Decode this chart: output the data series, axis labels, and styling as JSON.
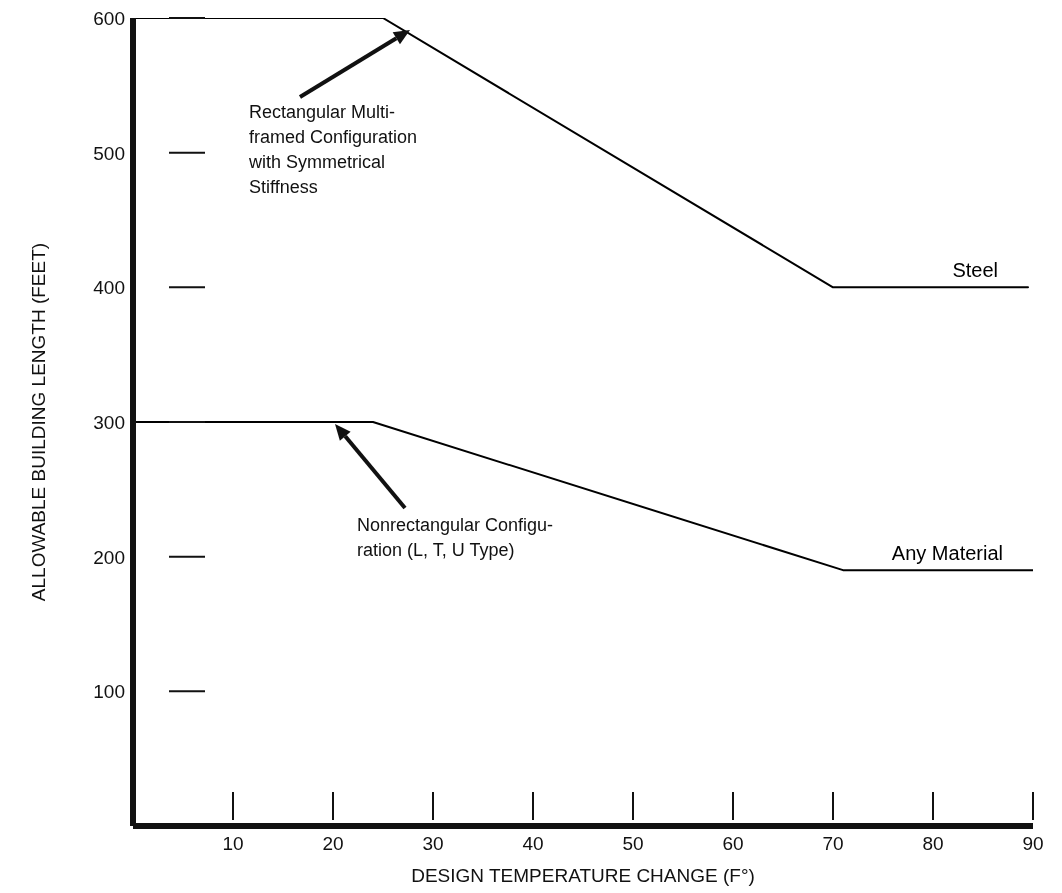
{
  "chart_data": {
    "type": "line",
    "xlabel": "DESIGN TEMPERATURE CHANGE (F°)",
    "ylabel": "ALLOWABLE BUILDING LENGTH (FEET)",
    "xlim": [
      0,
      90
    ],
    "xticks": [
      10,
      20,
      30,
      40,
      50,
      60,
      70,
      80,
      90
    ],
    "ylim": [
      0,
      600
    ],
    "yticks": [
      100,
      200,
      300,
      400,
      500,
      600
    ],
    "grid": false,
    "legend": false,
    "marker": "none",
    "line_style": "solid",
    "series": [
      {
        "name": "Steel",
        "color": "#000000",
        "x": [
          0,
          25,
          70,
          89.5
        ],
        "values": [
          600,
          600,
          400,
          400
        ]
      },
      {
        "name": "Any Material",
        "color": "#000000",
        "x": [
          0,
          24,
          71,
          90
        ],
        "values": [
          300,
          300,
          190,
          190
        ]
      }
    ],
    "annotations": [
      "Rectangular Multi-\nframed Configuration\nwith Symmetrical\nStiffness",
      "Nonrectangular Configu-\nration (L, T, U Type)"
    ]
  }
}
